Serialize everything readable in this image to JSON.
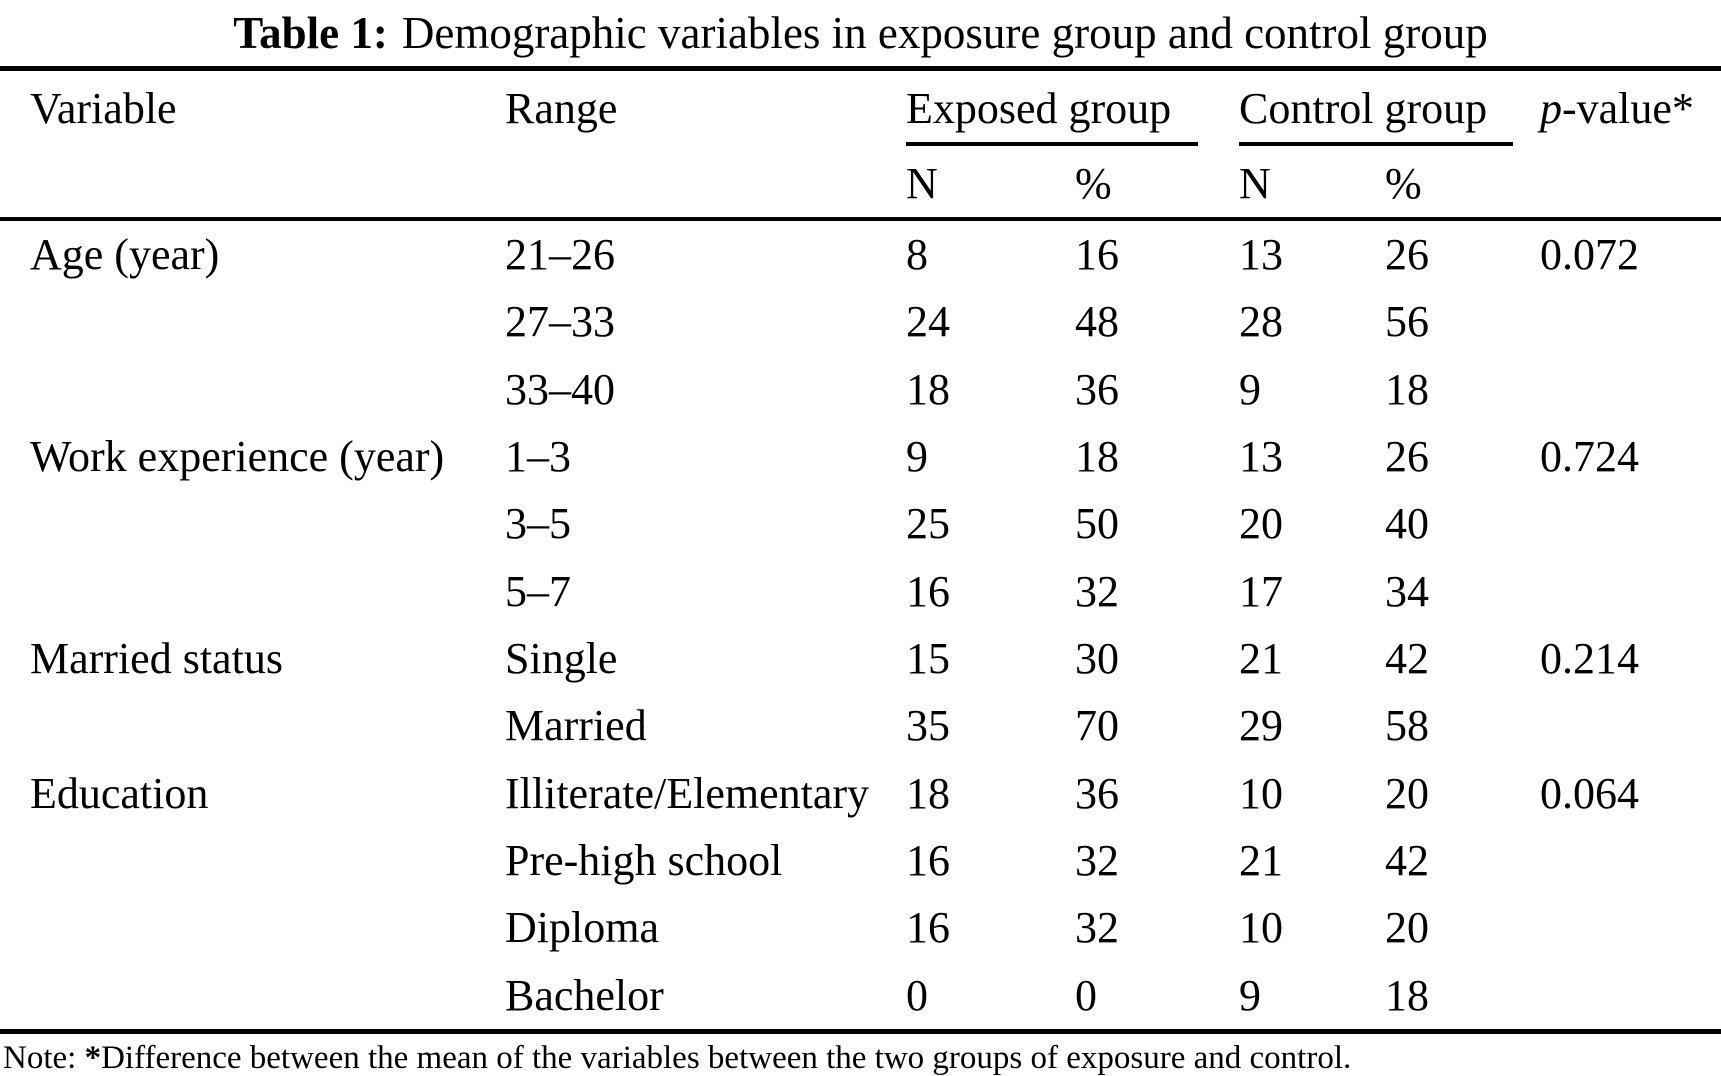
{
  "title": {
    "label": "Table 1:",
    "text": "Demographic variables in exposure group and control group"
  },
  "table": {
    "headers": {
      "variable": "Variable",
      "range": "Range",
      "exposed_group": "Exposed group",
      "control_group": "Control group",
      "pvalue_italic": "p",
      "pvalue_rest": "-value*",
      "sub_n": "N",
      "sub_pct": "%"
    },
    "rows": [
      {
        "variable": "Age (year)",
        "range": "21–26",
        "exp_n": "8",
        "exp_pct": "16",
        "ctrl_n": "13",
        "ctrl_pct": "26",
        "pvalue": "0.072"
      },
      {
        "variable": "",
        "range": "27–33",
        "exp_n": "24",
        "exp_pct": "48",
        "ctrl_n": "28",
        "ctrl_pct": "56",
        "pvalue": ""
      },
      {
        "variable": "",
        "range": "33–40",
        "exp_n": "18",
        "exp_pct": "36",
        "ctrl_n": "9",
        "ctrl_pct": "18",
        "pvalue": ""
      },
      {
        "variable": "Work experience (year)",
        "range": "1–3",
        "exp_n": "9",
        "exp_pct": "18",
        "ctrl_n": "13",
        "ctrl_pct": "26",
        "pvalue": "0.724"
      },
      {
        "variable": "",
        "range": "3–5",
        "exp_n": "25",
        "exp_pct": "50",
        "ctrl_n": "20",
        "ctrl_pct": "40",
        "pvalue": ""
      },
      {
        "variable": "",
        "range": "5–7",
        "exp_n": "16",
        "exp_pct": "32",
        "ctrl_n": "17",
        "ctrl_pct": "34",
        "pvalue": ""
      },
      {
        "variable": "Married status",
        "range": "Single",
        "exp_n": "15",
        "exp_pct": "30",
        "ctrl_n": "21",
        "ctrl_pct": "42",
        "pvalue": "0.214"
      },
      {
        "variable": "",
        "range": "Married",
        "exp_n": "35",
        "exp_pct": "70",
        "ctrl_n": "29",
        "ctrl_pct": "58",
        "pvalue": ""
      },
      {
        "variable": "Education",
        "range": "Illiterate/Elementary",
        "exp_n": "18",
        "exp_pct": "36",
        "ctrl_n": "10",
        "ctrl_pct": "20",
        "pvalue": "0.064"
      },
      {
        "variable": "",
        "range": "Pre-high school",
        "exp_n": "16",
        "exp_pct": "32",
        "ctrl_n": "21",
        "ctrl_pct": "42",
        "pvalue": ""
      },
      {
        "variable": "",
        "range": "Diploma",
        "exp_n": "16",
        "exp_pct": "32",
        "ctrl_n": "10",
        "ctrl_pct": "20",
        "pvalue": ""
      },
      {
        "variable": "",
        "range": "Bachelor",
        "exp_n": "0",
        "exp_pct": "0",
        "ctrl_n": "9",
        "ctrl_pct": "18",
        "pvalue": ""
      }
    ]
  },
  "note": {
    "prefix": "Note: ",
    "star": "*",
    "text": "Difference between the mean of the variables between the two groups of exposure and control."
  },
  "colors": {
    "text": "#000000",
    "background": "#ffffff"
  }
}
